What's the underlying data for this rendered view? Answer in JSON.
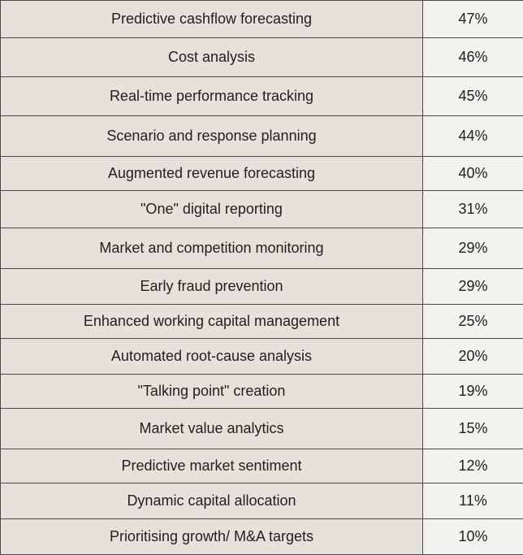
{
  "chart_data": {
    "type": "table",
    "rows": [
      {
        "label": "Predictive cashflow forecasting",
        "value": "47%"
      },
      {
        "label": "Cost analysis",
        "value": "46%"
      },
      {
        "label": "Real-time performance tracking",
        "value": "45%"
      },
      {
        "label": "Scenario and response planning",
        "value": "44%"
      },
      {
        "label": "Augmented revenue forecasting",
        "value": "40%"
      },
      {
        "label": "\"One\" digital reporting",
        "value": "31%"
      },
      {
        "label": "Market and competition monitoring",
        "value": "29%"
      },
      {
        "label": "Early fraud prevention",
        "value": "29%"
      },
      {
        "label": "Enhanced working capital management",
        "value": "25%"
      },
      {
        "label": "Automated root-cause analysis",
        "value": "20%"
      },
      {
        "label": "\"Talking point\" creation",
        "value": "19%"
      },
      {
        "label": "Market value analytics",
        "value": "15%"
      },
      {
        "label": "Predictive market sentiment",
        "value": "12%"
      },
      {
        "label": "Dynamic capital allocation",
        "value": "11%"
      },
      {
        "label": "Prioritising growth/ M&A targets",
        "value": "10%"
      }
    ]
  }
}
